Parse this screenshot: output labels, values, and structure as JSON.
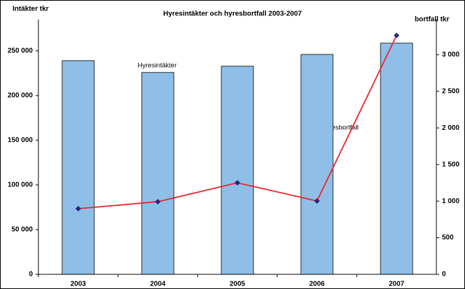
{
  "chart_data": {
    "type": "bar_line",
    "title": "Hyresintäkter och hyresbortfall 2003-2007",
    "y_label": "Intäkter tkr",
    "y2_label": "bortfall tkr",
    "annotations": [
      "Hyresintäkter",
      "Hyresbortfall"
    ],
    "categories": [
      "2003",
      "2004",
      "2005",
      "2006",
      "2007"
    ],
    "series": [
      {
        "name": "Hyresintäkter",
        "type": "bar",
        "color": "#8fbfe8",
        "values": [
          239000,
          225800,
          232800,
          246000,
          258600
        ]
      },
      {
        "name": "Hyresbortfall",
        "type": "line",
        "axis": "y2",
        "color": "#e8262b",
        "marker_color": "#1f2a7a",
        "values": [
          897,
          992,
          1250,
          1002,
          3263
        ]
      }
    ],
    "ylim": [
      0,
      285000
    ],
    "yticks": [
      0,
      {
        "value": 50000,
        "label": "50 000"
      },
      {
        "value": 100000,
        "label": "100 000"
      },
      {
        "value": 150000,
        "label": "150 000"
      },
      {
        "value": 200000,
        "label": "200 000"
      },
      {
        "value": 250000,
        "label": "250 000"
      }
    ],
    "y2lim": [
      0,
      3480
    ],
    "y2ticks": [
      0,
      500,
      {
        "value": 1000,
        "label": "1 000"
      },
      {
        "value": 1500,
        "label": "1 500"
      },
      {
        "value": 2000,
        "label": "2 000"
      },
      {
        "value": 2500,
        "label": "2 500"
      },
      {
        "value": 3000,
        "label": "3 000"
      }
    ]
  }
}
